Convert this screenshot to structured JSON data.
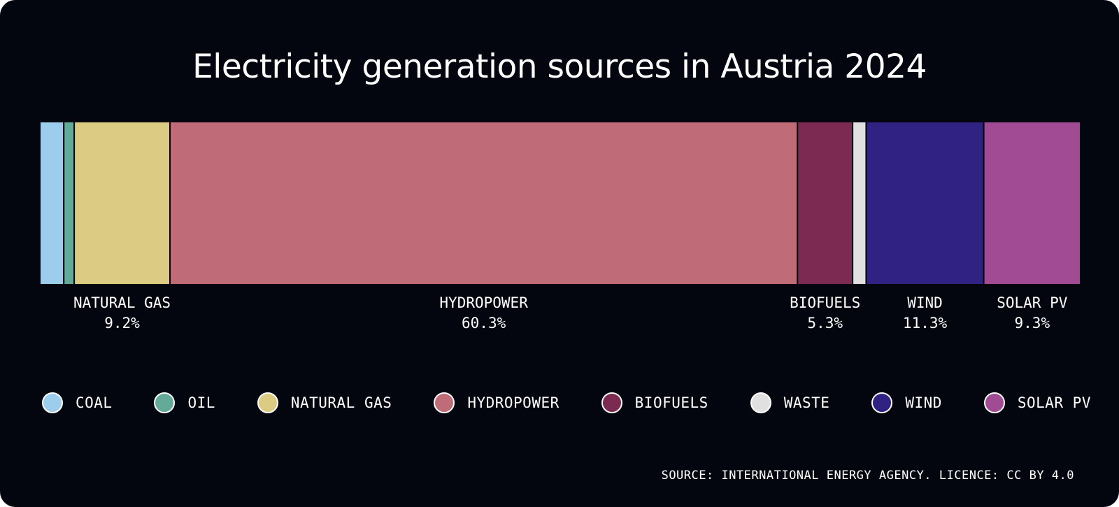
{
  "chart_data": {
    "type": "bar",
    "orientation": "horizontal-stacked",
    "title": "Electricity generation sources in Austria 2024",
    "unit": "%",
    "series": [
      {
        "name": "COAL",
        "value": 2.3,
        "label": null,
        "color": "#9dcdec"
      },
      {
        "name": "OIL",
        "value": 1.0,
        "label": null,
        "color": "#63aa98"
      },
      {
        "name": "NATURAL GAS",
        "value": 9.2,
        "label": "9.2%",
        "color": "#dccb82"
      },
      {
        "name": "HYDROPOWER",
        "value": 60.3,
        "label": "60.3%",
        "color": "#c06c78"
      },
      {
        "name": "BIOFUELS",
        "value": 5.3,
        "label": "5.3%",
        "color": "#7c2a52"
      },
      {
        "name": "WASTE",
        "value": 1.3,
        "label": null,
        "color": "#e0e0e0"
      },
      {
        "name": "WIND",
        "value": 11.3,
        "label": "11.3%",
        "color": "#302283"
      },
      {
        "name": "SOLAR PV",
        "value": 9.3,
        "label": "9.3%",
        "color": "#a04b94"
      }
    ],
    "legend_position": "bottom",
    "grid": false
  },
  "source": "SOURCE: INTERNATIONAL ENERGY AGENCY. LICENCE: CC BY 4.0",
  "colors": {
    "background": "#03050f",
    "text": "#ffffff"
  }
}
